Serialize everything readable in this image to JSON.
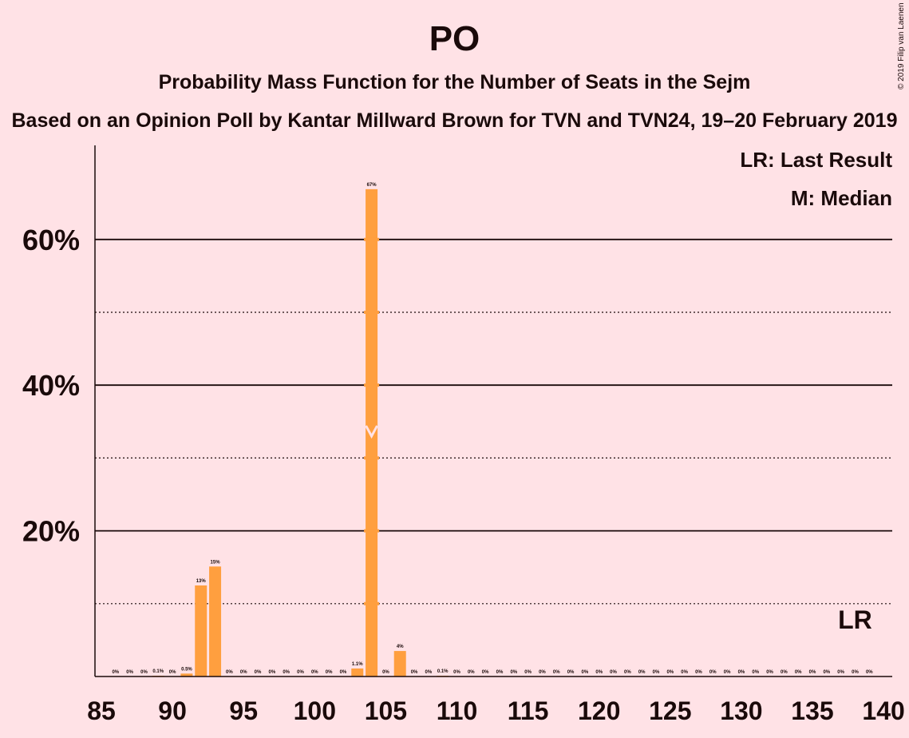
{
  "chart_data": {
    "type": "bar",
    "title": "PO",
    "subtitle": "Probability Mass Function for the Number of Seats in the Sejm",
    "source": "Based on an Opinion Poll by Kantar Millward Brown for TVN and TVN24, 19–20 February 2019",
    "copyright": "© 2019 Filip van Laenen",
    "legend": [
      "LR: Last Result",
      "M: Median"
    ],
    "legend_position": "top-right",
    "x_ticks": [
      85,
      90,
      95,
      100,
      105,
      110,
      115,
      120,
      125,
      130,
      135,
      140
    ],
    "y_ticks": [
      {
        "value": 20,
        "label": "20%"
      },
      {
        "value": 40,
        "label": "40%"
      },
      {
        "value": 60,
        "label": "60%"
      }
    ],
    "y_minor_gridlines": [
      10,
      30,
      50
    ],
    "ylim": [
      0,
      72
    ],
    "xlim": [
      85,
      140
    ],
    "bar_color": "#ff9f3f",
    "seats": [
      86,
      87,
      88,
      89,
      90,
      91,
      92,
      93,
      94,
      95,
      96,
      97,
      98,
      99,
      100,
      101,
      102,
      103,
      104,
      105,
      106,
      107,
      108,
      109,
      110,
      111,
      112,
      113,
      114,
      115,
      116,
      117,
      118,
      119,
      120,
      121,
      122,
      123,
      124,
      125,
      126,
      127,
      128,
      129,
      130,
      131,
      132,
      133,
      134,
      135,
      136,
      137,
      138,
      139
    ],
    "values": [
      0,
      0,
      0,
      0.1,
      0,
      0.5,
      13,
      15,
      0,
      0,
      0,
      0,
      0,
      0,
      0,
      0,
      0,
      1.1,
      67,
      0,
      4,
      0,
      0,
      0.1,
      0,
      0,
      0,
      0,
      0,
      0,
      0,
      0,
      0,
      0,
      0,
      0,
      0,
      0,
      0,
      0,
      0,
      0,
      0,
      0,
      0,
      0,
      0,
      0,
      0,
      0,
      0,
      0,
      0,
      0
    ],
    "plot_values": [
      0,
      0,
      0,
      0.1,
      0,
      0.4,
      12.5,
      15.1,
      0,
      0,
      0,
      0,
      0,
      0,
      0,
      0,
      0,
      1.1,
      66.9,
      0,
      3.5,
      0,
      0,
      0.1,
      0,
      0,
      0,
      0,
      0,
      0,
      0,
      0,
      0,
      0,
      0,
      0,
      0,
      0,
      0,
      0,
      0,
      0,
      0,
      0,
      0,
      0,
      0,
      0,
      0,
      0,
      0,
      0,
      0,
      0
    ],
    "labels": [
      "0%",
      "0%",
      "0%",
      "0.1%",
      "0%",
      "0.5%",
      "13%",
      "15%",
      "0%",
      "0%",
      "0%",
      "0%",
      "0%",
      "0%",
      "0%",
      "0%",
      "0%",
      "1.1%",
      "67%",
      "0%",
      "4%",
      "0%",
      "0%",
      "0.1%",
      "0%",
      "0%",
      "0%",
      "0%",
      "0%",
      "0%",
      "0%",
      "0%",
      "0%",
      "0%",
      "0%",
      "0%",
      "0%",
      "0%",
      "0%",
      "0%",
      "0%",
      "0%",
      "0%",
      "0%",
      "0%",
      "0%",
      "0%",
      "0%",
      "0%",
      "0%",
      "0%",
      "0%",
      "0%",
      "0%"
    ],
    "median": {
      "seat": 104,
      "marker": "M",
      "level": 33
    },
    "last_result": {
      "seat": 138,
      "label": "LR"
    }
  }
}
